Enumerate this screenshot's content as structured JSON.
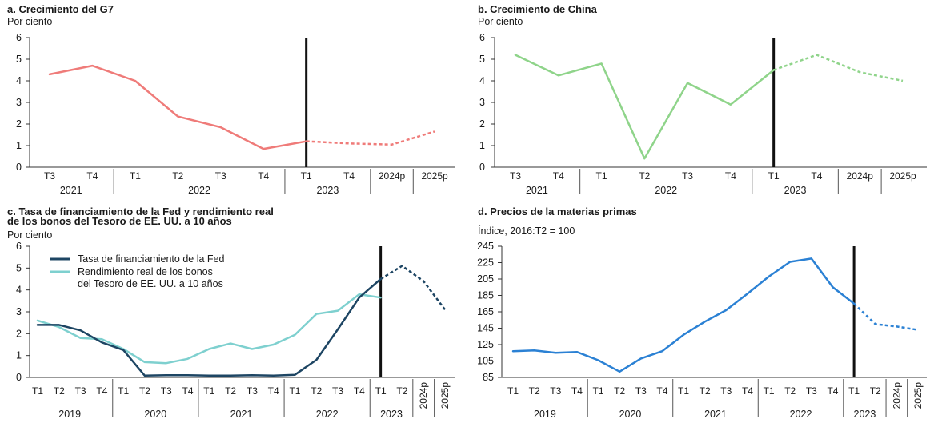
{
  "colors": {
    "g7": "#ef7b79",
    "china": "#8fd48a",
    "fed": "#1d4563",
    "treasury": "#7ed0cf",
    "commodities": "#2b81d4",
    "marker": "#111111"
  },
  "chart_data": [
    {
      "id": "a",
      "type": "line",
      "title": "a. Crecimiento del G7",
      "ylabel": "Por ciento",
      "ylim": [
        0,
        6
      ],
      "yticks": [
        "0",
        "1",
        "2",
        "3",
        "4",
        "5",
        "6"
      ],
      "x_labels": [
        "T3",
        "T4",
        "T1",
        "T2",
        "T3",
        "T4",
        "T1",
        "T4",
        "2024p",
        "2025p"
      ],
      "year_groups": [
        {
          "label": "2021",
          "span": [
            0,
            1
          ]
        },
        {
          "label": "2022",
          "span": [
            2,
            5
          ]
        },
        {
          "label": "2023",
          "span": [
            6,
            7
          ]
        }
      ],
      "separators_after": [
        1,
        5,
        7,
        8
      ],
      "vline_at": 6,
      "series": [
        {
          "key": "g7",
          "solid": [
            [
              0,
              4.3
            ],
            [
              1,
              4.7
            ],
            [
              2,
              4.0
            ],
            [
              3,
              2.35
            ],
            [
              4,
              1.85
            ],
            [
              5,
              0.85
            ],
            [
              6,
              1.2
            ]
          ],
          "dashed": [
            [
              6,
              1.2
            ],
            [
              7,
              1.1
            ],
            [
              8,
              1.05
            ],
            [
              9,
              1.65
            ]
          ]
        }
      ]
    },
    {
      "id": "b",
      "type": "line",
      "title": "b. Crecimiento de China",
      "ylabel": "Por ciento",
      "ylim": [
        0,
        6
      ],
      "yticks": [
        "0",
        "1",
        "2",
        "3",
        "4",
        "5",
        "6"
      ],
      "x_labels": [
        "T3",
        "T4",
        "T1",
        "T2",
        "T3",
        "T4",
        "T1",
        "T4",
        "2024p",
        "2025p"
      ],
      "year_groups": [
        {
          "label": "2021",
          "span": [
            0,
            1
          ]
        },
        {
          "label": "2022",
          "span": [
            2,
            5
          ]
        },
        {
          "label": "2023",
          "span": [
            6,
            7
          ]
        }
      ],
      "separators_after": [
        1,
        5,
        7,
        8
      ],
      "vline_at": 6,
      "series": [
        {
          "key": "china",
          "solid": [
            [
              0,
              5.2
            ],
            [
              1,
              4.25
            ],
            [
              2,
              4.8
            ],
            [
              3,
              0.4
            ],
            [
              4,
              3.9
            ],
            [
              5,
              2.9
            ],
            [
              6,
              4.5
            ]
          ],
          "dashed": [
            [
              6,
              4.5
            ],
            [
              7,
              5.2
            ],
            [
              8,
              4.4
            ],
            [
              9,
              4.0
            ]
          ]
        }
      ]
    },
    {
      "id": "c",
      "type": "line",
      "title": "c. Tasa de financiamiento de la Fed y rendimiento real",
      "title_line2": "de los bonos del Tesoro de EE. UU. a 10 años",
      "ylabel": "Por ciento",
      "ylim": [
        0,
        6
      ],
      "yticks": [
        "0",
        "1",
        "2",
        "3",
        "4",
        "5",
        "6"
      ],
      "x_labels": [
        "T1",
        "T2",
        "T3",
        "T4",
        "T1",
        "T2",
        "T3",
        "T4",
        "T1",
        "T2",
        "T3",
        "T4",
        "T1",
        "T2",
        "T3",
        "T4",
        "T1",
        "T2",
        "2024p",
        "2025p"
      ],
      "year_groups": [
        {
          "label": "2019",
          "span": [
            0,
            3
          ]
        },
        {
          "label": "2020",
          "span": [
            4,
            7
          ]
        },
        {
          "label": "2021",
          "span": [
            8,
            11
          ]
        },
        {
          "label": "2022",
          "span": [
            12,
            15
          ]
        },
        {
          "label": "2023",
          "span": [
            16,
            17
          ]
        }
      ],
      "separators_after": [
        3,
        7,
        11,
        15,
        17,
        18
      ],
      "vline_at": 16,
      "legend": [
        {
          "key": "fed",
          "label": "Tasa de financiamiento de la Fed"
        },
        {
          "key": "treasury",
          "label": "Rendimiento real de los bonos",
          "label2": "del Tesoro de EE. UU. a 10 años"
        }
      ],
      "series": [
        {
          "key": "treasury",
          "name": "Rendimiento real de los bonos del Tesoro de EE. UU. a 10 años",
          "solid": [
            [
              0,
              2.6
            ],
            [
              1,
              2.3
            ],
            [
              2,
              1.8
            ],
            [
              3,
              1.75
            ],
            [
              4,
              1.3
            ],
            [
              5,
              0.7
            ],
            [
              6,
              0.65
            ],
            [
              7,
              0.85
            ],
            [
              8,
              1.3
            ],
            [
              9,
              1.55
            ],
            [
              10,
              1.3
            ],
            [
              11,
              1.5
            ],
            [
              12,
              1.95
            ],
            [
              13,
              2.9
            ],
            [
              14,
              3.05
            ],
            [
              15,
              3.8
            ],
            [
              16,
              3.65
            ]
          ],
          "dashed": []
        },
        {
          "key": "fed",
          "name": "Tasa de financiamiento de la Fed",
          "solid": [
            [
              0,
              2.4
            ],
            [
              1,
              2.4
            ],
            [
              2,
              2.15
            ],
            [
              3,
              1.6
            ],
            [
              4,
              1.25
            ],
            [
              5,
              0.08
            ],
            [
              6,
              0.1
            ],
            [
              7,
              0.1
            ],
            [
              8,
              0.08
            ],
            [
              9,
              0.08
            ],
            [
              10,
              0.1
            ],
            [
              11,
              0.08
            ],
            [
              12,
              0.12
            ],
            [
              13,
              0.8
            ],
            [
              14,
              2.2
            ],
            [
              15,
              3.65
            ],
            [
              16,
              4.5
            ]
          ],
          "dashed": [
            [
              16,
              4.5
            ],
            [
              17,
              5.1
            ],
            [
              18,
              4.4
            ],
            [
              19,
              3.1
            ]
          ]
        }
      ]
    },
    {
      "id": "d",
      "type": "line",
      "title": "d. Precios de la materias primas",
      "ylabel": "Índice, 2016:T2 = 100",
      "ylim": [
        85,
        245
      ],
      "yticks": [
        "85",
        "105",
        "125",
        "145",
        "165",
        "185",
        "205",
        "225",
        "245"
      ],
      "x_labels": [
        "T1",
        "T2",
        "T3",
        "T4",
        "T1",
        "T2",
        "T3",
        "T4",
        "T1",
        "T2",
        "T3",
        "T4",
        "T1",
        "T2",
        "T3",
        "T4",
        "T1",
        "T2",
        "2024p",
        "2025p"
      ],
      "year_groups": [
        {
          "label": "2019",
          "span": [
            0,
            3
          ]
        },
        {
          "label": "2020",
          "span": [
            4,
            7
          ]
        },
        {
          "label": "2021",
          "span": [
            8,
            11
          ]
        },
        {
          "label": "2022",
          "span": [
            12,
            15
          ]
        },
        {
          "label": "2023",
          "span": [
            16,
            17
          ]
        }
      ],
      "separators_after": [
        3,
        7,
        11,
        15,
        17,
        18
      ],
      "vline_at": 16,
      "series": [
        {
          "key": "commodities",
          "solid": [
            [
              0,
              117
            ],
            [
              1,
              118
            ],
            [
              2,
              115
            ],
            [
              3,
              116
            ],
            [
              4,
              106
            ],
            [
              5,
              92
            ],
            [
              6,
              108
            ],
            [
              7,
              117
            ],
            [
              8,
              137
            ],
            [
              9,
              153
            ],
            [
              10,
              167
            ],
            [
              11,
              187
            ],
            [
              12,
              208
            ],
            [
              13,
              226
            ],
            [
              14,
              230
            ],
            [
              15,
              195
            ],
            [
              16,
              175
            ]
          ],
          "dashed": [
            [
              16,
              175
            ],
            [
              17,
              150
            ],
            [
              18,
              147
            ],
            [
              19,
              143
            ]
          ]
        }
      ]
    }
  ]
}
